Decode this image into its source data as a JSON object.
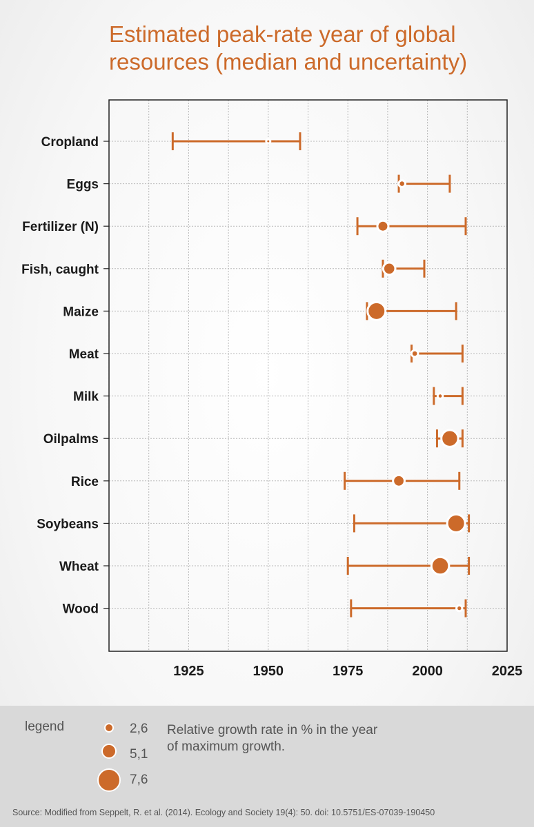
{
  "title": "Estimated peak-rate year of global resources (median and uncertainty)",
  "chart_data": {
    "type": "errorbar-dot",
    "title": "Estimated peak-rate year of global resources (median and uncertainty)",
    "xlim": [
      1900,
      2025
    ],
    "x_ticks": [
      1925,
      1950,
      1975,
      2000,
      2025
    ],
    "x_tick_labels": [
      "1925",
      "1950",
      "1975",
      "2000",
      "2025"
    ],
    "grid": true,
    "color": "#cc6a2a",
    "categories": [
      "Cropland",
      "Eggs",
      "Fertilizer (N)",
      "Fish, caught",
      "Maize",
      "Meat",
      "Milk",
      "Oilpalms",
      "Rice",
      "Soybeans",
      "Wheat",
      "Wood"
    ],
    "median": [
      1950,
      1992,
      1986,
      1988,
      1984,
      1996,
      2004,
      2007,
      1991,
      2009,
      2004,
      2010
    ],
    "lower": [
      1920,
      1991,
      1978,
      1986,
      1981,
      1995,
      2002,
      2003,
      1974,
      1977,
      1975,
      1976
    ],
    "upper": [
      1960,
      2007,
      2012,
      1999,
      2009,
      2011,
      2011,
      2011,
      2010,
      2013,
      2013,
      2012
    ],
    "growth_rate": [
      2.6,
      3.5,
      5.1,
      5.5,
      7.6,
      3.5,
      3.0,
      7.2,
      5.3,
      7.6,
      7.5,
      3.2
    ]
  },
  "legend": {
    "label": "legend",
    "sizes": [
      {
        "label": "2,6",
        "value": 2.6
      },
      {
        "label": "5,1",
        "value": 5.1
      },
      {
        "label": "7,6",
        "value": 7.6
      }
    ],
    "description": "Relative growth rate in % in the year of maximum growth."
  },
  "source": "Source: Modified from Seppelt, R. et al. (2014). Ecology and Society 19(4): 50. doi: 10.5751/ES-07039-190450"
}
